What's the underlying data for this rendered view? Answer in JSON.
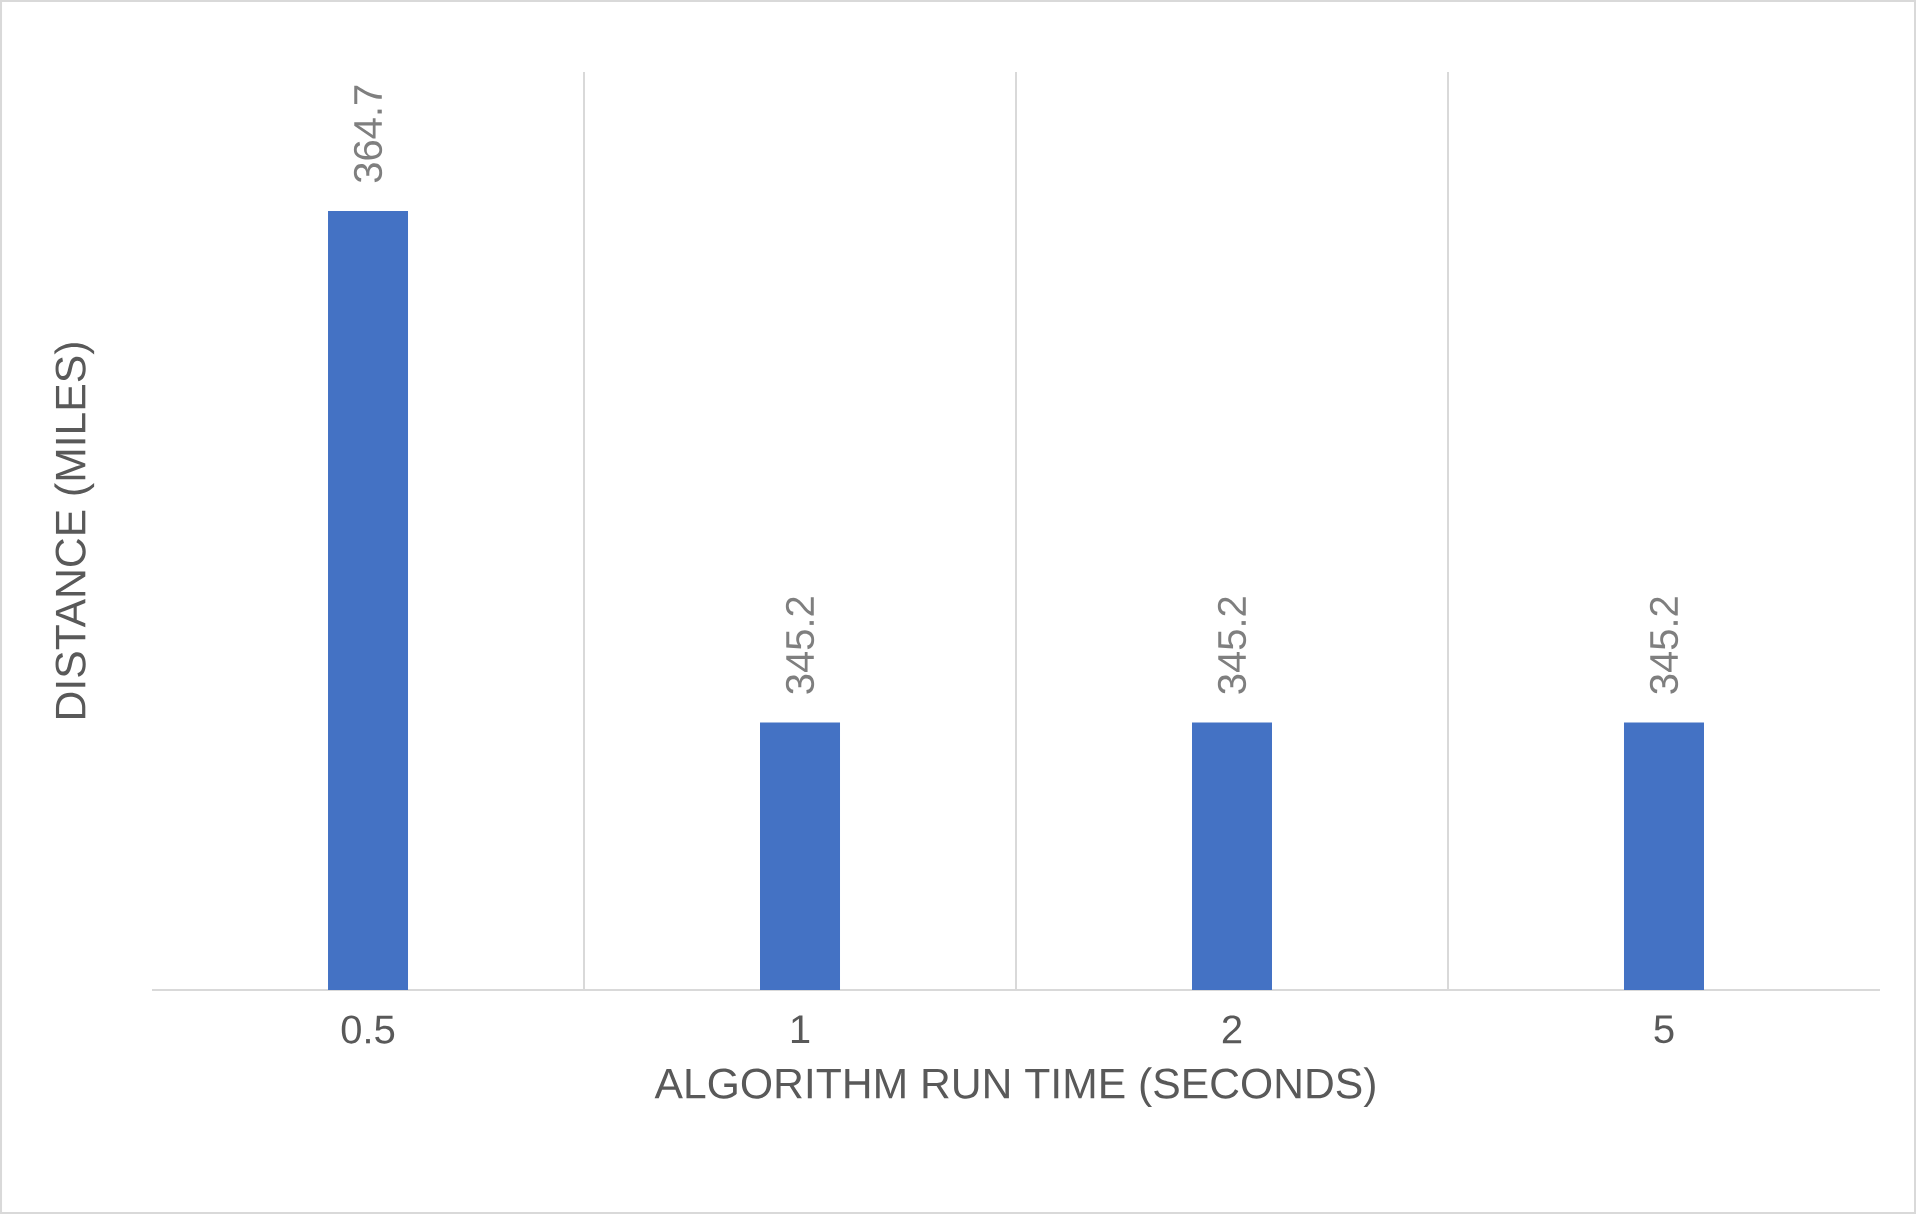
{
  "chart_data": {
    "type": "bar",
    "xlabel": "ALGORITHM RUN TIME (SECONDS)",
    "ylabel": "DISTANCE (MILES)",
    "categories": [
      "0.5",
      "1",
      "2",
      "5"
    ],
    "values": [
      364.7,
      345.2,
      345.2,
      345.2
    ],
    "color": "#4472c4",
    "ylim": [
      335,
      370
    ],
    "data_labels": true,
    "grid": "x",
    "legend": false
  }
}
